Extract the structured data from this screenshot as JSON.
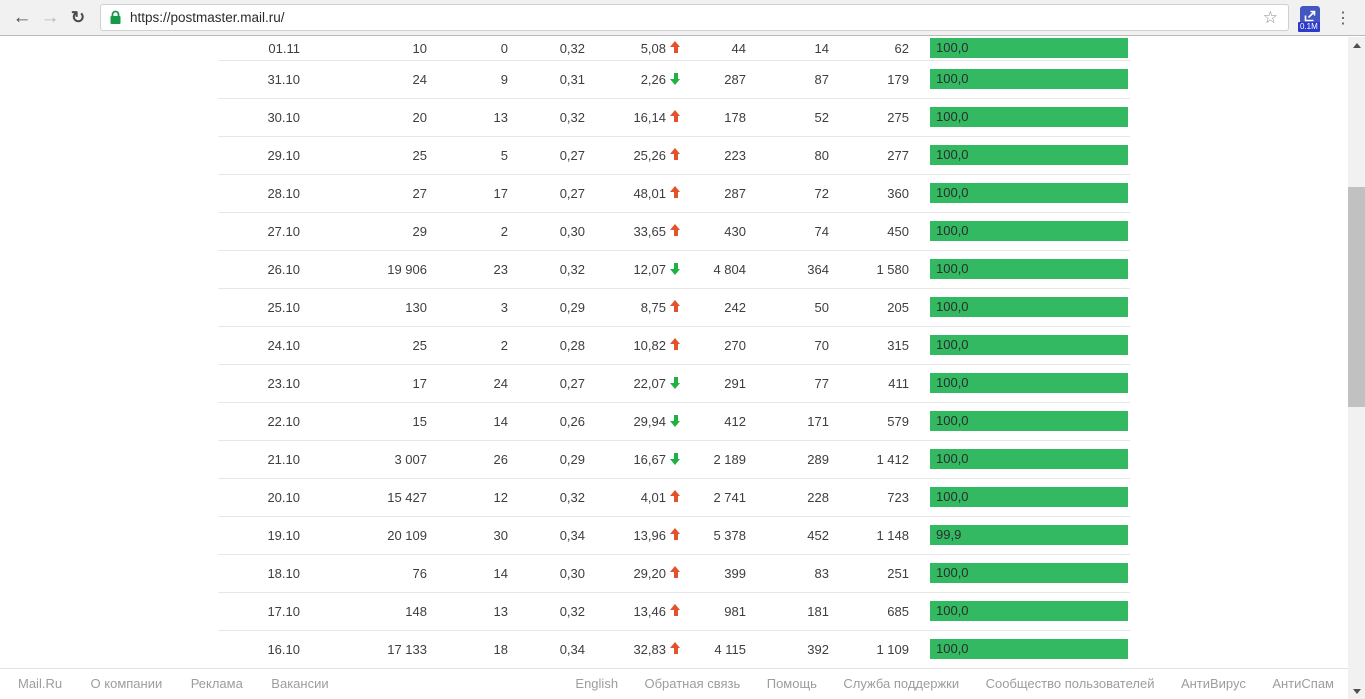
{
  "browser": {
    "url": "https://postmaster.mail.ru/",
    "extension_badge": "0.1M",
    "icons": {
      "back": "arrow-left",
      "forward": "arrow-right",
      "reload": "reload-circle",
      "lock": "secure-padlock",
      "bookmark": "star-outline",
      "menu": "three-dots-vertical",
      "extension": "alexa-rank-arrow"
    }
  },
  "colors": {
    "bar_green": "#32b962",
    "arrow_up_red": "#e2532d",
    "arrow_down_green": "#1fb141",
    "chrome_bg": "#f1f1f2",
    "footer_link_gray": "#9d9d9d"
  },
  "table": {
    "rows": [
      {
        "date": "01.11",
        "c2": "10",
        "c3": "0",
        "c4": "0,32",
        "pct": "5,08",
        "trend": "up",
        "c6": "44",
        "c7": "14",
        "c8": "62",
        "bar_label": "100,0",
        "bar_pct": 100
      },
      {
        "date": "31.10",
        "c2": "24",
        "c3": "9",
        "c4": "0,31",
        "pct": "2,26",
        "trend": "down",
        "c6": "287",
        "c7": "87",
        "c8": "179",
        "bar_label": "100,0",
        "bar_pct": 100
      },
      {
        "date": "30.10",
        "c2": "20",
        "c3": "13",
        "c4": "0,32",
        "pct": "16,14",
        "trend": "up",
        "c6": "178",
        "c7": "52",
        "c8": "275",
        "bar_label": "100,0",
        "bar_pct": 100
      },
      {
        "date": "29.10",
        "c2": "25",
        "c3": "5",
        "c4": "0,27",
        "pct": "25,26",
        "trend": "up",
        "c6": "223",
        "c7": "80",
        "c8": "277",
        "bar_label": "100,0",
        "bar_pct": 100
      },
      {
        "date": "28.10",
        "c2": "27",
        "c3": "17",
        "c4": "0,27",
        "pct": "48,01",
        "trend": "up",
        "c6": "287",
        "c7": "72",
        "c8": "360",
        "bar_label": "100,0",
        "bar_pct": 100
      },
      {
        "date": "27.10",
        "c2": "29",
        "c3": "2",
        "c4": "0,30",
        "pct": "33,65",
        "trend": "up",
        "c6": "430",
        "c7": "74",
        "c8": "450",
        "bar_label": "100,0",
        "bar_pct": 100
      },
      {
        "date": "26.10",
        "c2": "19 906",
        "c3": "23",
        "c4": "0,32",
        "pct": "12,07",
        "trend": "down",
        "c6": "4 804",
        "c7": "364",
        "c8": "1 580",
        "bar_label": "100,0",
        "bar_pct": 100
      },
      {
        "date": "25.10",
        "c2": "130",
        "c3": "3",
        "c4": "0,29",
        "pct": "8,75",
        "trend": "up",
        "c6": "242",
        "c7": "50",
        "c8": "205",
        "bar_label": "100,0",
        "bar_pct": 100
      },
      {
        "date": "24.10",
        "c2": "25",
        "c3": "2",
        "c4": "0,28",
        "pct": "10,82",
        "trend": "up",
        "c6": "270",
        "c7": "70",
        "c8": "315",
        "bar_label": "100,0",
        "bar_pct": 100
      },
      {
        "date": "23.10",
        "c2": "17",
        "c3": "24",
        "c4": "0,27",
        "pct": "22,07",
        "trend": "down",
        "c6": "291",
        "c7": "77",
        "c8": "411",
        "bar_label": "100,0",
        "bar_pct": 100
      },
      {
        "date": "22.10",
        "c2": "15",
        "c3": "14",
        "c4": "0,26",
        "pct": "29,94",
        "trend": "down",
        "c6": "412",
        "c7": "171",
        "c8": "579",
        "bar_label": "100,0",
        "bar_pct": 100
      },
      {
        "date": "21.10",
        "c2": "3 007",
        "c3": "26",
        "c4": "0,29",
        "pct": "16,67",
        "trend": "down",
        "c6": "2 189",
        "c7": "289",
        "c8": "1 412",
        "bar_label": "100,0",
        "bar_pct": 100
      },
      {
        "date": "20.10",
        "c2": "15 427",
        "c3": "12",
        "c4": "0,32",
        "pct": "4,01",
        "trend": "up",
        "c6": "2 741",
        "c7": "228",
        "c8": "723",
        "bar_label": "100,0",
        "bar_pct": 100
      },
      {
        "date": "19.10",
        "c2": "20 109",
        "c3": "30",
        "c4": "0,34",
        "pct": "13,96",
        "trend": "up",
        "c6": "5 378",
        "c7": "452",
        "c8": "1 148",
        "bar_label": "99,9",
        "bar_pct": 99.9
      },
      {
        "date": "18.10",
        "c2": "76",
        "c3": "14",
        "c4": "0,30",
        "pct": "29,20",
        "trend": "up",
        "c6": "399",
        "c7": "83",
        "c8": "251",
        "bar_label": "100,0",
        "bar_pct": 100
      },
      {
        "date": "17.10",
        "c2": "148",
        "c3": "13",
        "c4": "0,32",
        "pct": "13,46",
        "trend": "up",
        "c6": "981",
        "c7": "181",
        "c8": "685",
        "bar_label": "100,0",
        "bar_pct": 100
      },
      {
        "date": "16.10",
        "c2": "17 133",
        "c3": "18",
        "c4": "0,34",
        "pct": "32,83",
        "trend": "up",
        "c6": "4 115",
        "c7": "392",
        "c8": "1 109",
        "bar_label": "100,0",
        "bar_pct": 100
      }
    ]
  },
  "footer": {
    "left_links": [
      "Mail.Ru",
      "О компании",
      "Реклама",
      "Вакансии"
    ],
    "right_links": [
      "English",
      "Обратная связь",
      "Помощь",
      "Служба поддержки",
      "Сообщество пользователей",
      "АнтиВирус",
      "АнтиСпам"
    ]
  }
}
